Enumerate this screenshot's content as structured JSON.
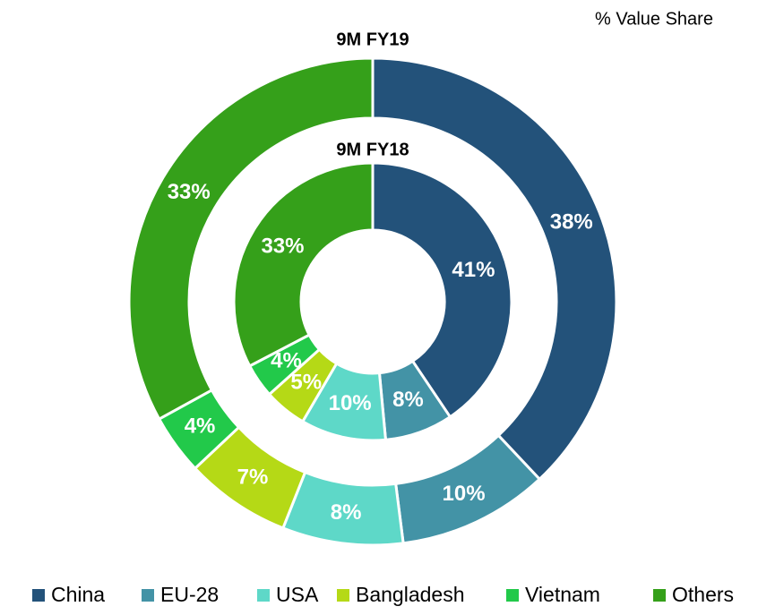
{
  "chart_data": {
    "type": "donut",
    "subtitle": "% Value Share",
    "categories": [
      "China",
      "EU-28",
      "USA",
      "Bangladesh",
      "Vietnam",
      "Others"
    ],
    "colors": [
      "#23527a",
      "#4393a6",
      "#5ed8c8",
      "#b5d916",
      "#22c94a",
      "#35a01a"
    ],
    "series": [
      {
        "name": "9M FY19",
        "values": [
          38,
          10,
          8,
          7,
          4,
          33
        ],
        "value_labels": [
          "38%",
          "10%",
          "8%",
          "7%",
          "4%",
          "33%"
        ]
      },
      {
        "name": "9M FY18",
        "values": [
          41,
          8,
          10,
          5,
          4,
          33
        ],
        "value_labels": [
          "41%",
          "8%",
          "10%",
          "5%",
          "4%",
          "33%"
        ]
      }
    ],
    "legend": "bottom"
  }
}
